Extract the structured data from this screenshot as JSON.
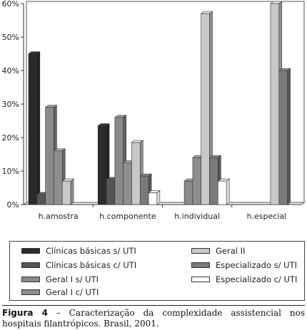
{
  "chart_data": {
    "type": "bar",
    "style": "3d-clustered",
    "categories": [
      "h.amostra",
      "h.componente",
      "h.individual",
      "h.especial"
    ],
    "y_ticks": [
      "0%",
      "10%",
      "20%",
      "30%",
      "40%",
      "50%",
      "60%"
    ],
    "ylim": [
      0,
      60
    ],
    "y_unit": "%",
    "grid": false,
    "legend_placement": "bottom",
    "series": [
      {
        "name": "Clínicas básicas s/ UTI",
        "color": "#2b2b2b",
        "values": [
          45,
          23.5,
          0,
          0
        ]
      },
      {
        "name": "Clínicas básicas c/ UTI",
        "color": "#555555",
        "values": [
          3,
          7.5,
          0,
          0
        ]
      },
      {
        "name": "Geral I s/ UTI",
        "color": "#8a8a8a",
        "values": [
          29,
          26,
          7,
          0
        ]
      },
      {
        "name": "Geral I c/ UTI",
        "color": "#8e8e8e",
        "values": [
          16,
          12.5,
          14,
          0
        ]
      },
      {
        "name": "Geral II",
        "color": "#c8c8c8",
        "values": [
          7,
          18.5,
          57,
          60
        ]
      },
      {
        "name": "Especializado s/ UTI",
        "color": "#7a7a7a",
        "values": [
          0,
          8.5,
          14,
          40
        ]
      },
      {
        "name": "Especializado c/ UTI",
        "color": "#ffffff",
        "values": [
          0,
          3.5,
          7,
          0
        ]
      }
    ]
  },
  "caption": {
    "label": "Figura 4",
    "text": " – Caracterização da complexidade assistencial nos hospitais filantrópicos. Brasil, 2001."
  }
}
